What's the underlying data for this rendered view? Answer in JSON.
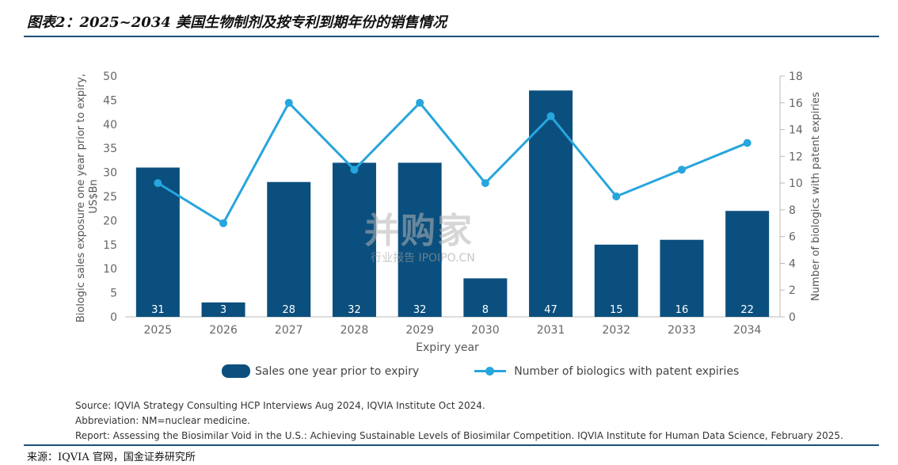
{
  "header": {
    "title": "图表2：2025~2034 美国生物制剂及按专利到期年份的销售情况"
  },
  "chart_data": {
    "type": "bar+line",
    "categories": [
      "2025",
      "2026",
      "2027",
      "2028",
      "2029",
      "2030",
      "2031",
      "2032",
      "2033",
      "2034"
    ],
    "bars": {
      "name": "Sales one year prior to expiry",
      "values": [
        31,
        3,
        28,
        32,
        32,
        8,
        47,
        15,
        16,
        22
      ],
      "color": "#0b4f7e"
    },
    "line": {
      "name": "Number of biologics with patent expiries",
      "values": [
        10,
        7,
        16,
        11,
        16,
        10,
        15,
        9,
        11,
        13
      ],
      "color": "#27a5dd"
    },
    "xlabel": "Expiry year",
    "ylabel_left": "Biologic sales exposure one year prior to expiry, US$Bn",
    "ylabel_left_line1": "Biologic sales exposure one year prior to expiry,",
    "ylabel_left_line2": "US$Bn",
    "ylabel_right": "Number of biologics with patent expiries",
    "ylim_left": [
      0,
      50
    ],
    "ylim_right": [
      0,
      18
    ],
    "yticks_left": [
      0,
      5,
      10,
      15,
      20,
      25,
      30,
      35,
      40,
      45,
      50
    ],
    "yticks_right": [
      0,
      2,
      4,
      6,
      8,
      10,
      12,
      14,
      16,
      18
    ],
    "legend_position": "bottom"
  },
  "legend": {
    "bars_label": "Sales one year prior to expiry",
    "line_label": "Number of biologics with patent expiries"
  },
  "notes": {
    "source": "Source: IQVIA Strategy Consulting HCP Interviews Aug 2024, IQVIA Institute Oct 2024.",
    "abbreviation": "Abbreviation: NM=nuclear medicine.",
    "report": "Report: Assessing the Biosimilar Void in the U.S.: Achieving Sustainable Levels of Biosimilar Competition. IQVIA Institute for Human Data Science, February 2025."
  },
  "footer": {
    "source": "来源：IQVIA 官网，国金证券研究所"
  },
  "watermark": {
    "main": "并购家",
    "sub": "行业报告 IPOIPO.CN"
  }
}
